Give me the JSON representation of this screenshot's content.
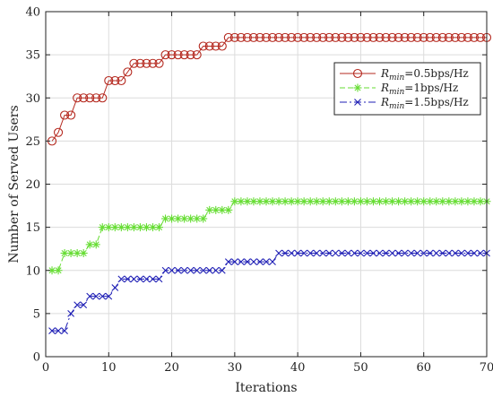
{
  "chart_data": {
    "type": "line",
    "title": "",
    "xlabel": "Iterations",
    "ylabel": "Number of Served Users",
    "xlim": [
      0,
      70
    ],
    "ylim": [
      0,
      40
    ],
    "xticks": [
      0,
      10,
      20,
      30,
      40,
      50,
      60,
      70
    ],
    "yticks": [
      0,
      5,
      10,
      15,
      20,
      25,
      30,
      35,
      40
    ],
    "grid": true,
    "legend_position": "top-right",
    "series": [
      {
        "name": "R_min=0.5bps/Hz",
        "legend_main": "R",
        "legend_sub": "min",
        "legend_rest": "=0.5bps/Hz",
        "color": "#b5291f",
        "marker": "circle",
        "line_style": "solid",
        "x": [
          1,
          2,
          3,
          4,
          5,
          6,
          7,
          8,
          9,
          10,
          11,
          12,
          13,
          14,
          15,
          16,
          17,
          18,
          19,
          20,
          21,
          22,
          23,
          24,
          25,
          26,
          27,
          28,
          29,
          30,
          31,
          32,
          33,
          34,
          35,
          36,
          37,
          38,
          39,
          40,
          41,
          42,
          43,
          44,
          45,
          46,
          47,
          48,
          49,
          50,
          51,
          52,
          53,
          54,
          55,
          56,
          57,
          58,
          59,
          60,
          61,
          62,
          63,
          64,
          65,
          66,
          67,
          68,
          69,
          70
        ],
        "values": [
          25,
          26,
          28,
          28,
          30,
          30,
          30,
          30,
          30,
          32,
          32,
          32,
          33,
          34,
          34,
          34,
          34,
          34,
          35,
          35,
          35,
          35,
          35,
          35,
          36,
          36,
          36,
          36,
          37,
          37,
          37,
          37,
          37,
          37,
          37,
          37,
          37,
          37,
          37,
          37,
          37,
          37,
          37,
          37,
          37,
          37,
          37,
          37,
          37,
          37,
          37,
          37,
          37,
          37,
          37,
          37,
          37,
          37,
          37,
          37,
          37,
          37,
          37,
          37,
          37,
          37,
          37,
          37,
          37,
          37
        ]
      },
      {
        "name": "R_min=1bps/Hz",
        "legend_main": "R",
        "legend_sub": "min",
        "legend_rest": "=1bps/Hz",
        "color": "#66dd33",
        "marker": "asterisk",
        "line_style": "dashed",
        "x": [
          1,
          2,
          3,
          4,
          5,
          6,
          7,
          8,
          9,
          10,
          11,
          12,
          13,
          14,
          15,
          16,
          17,
          18,
          19,
          20,
          21,
          22,
          23,
          24,
          25,
          26,
          27,
          28,
          29,
          30,
          31,
          32,
          33,
          34,
          35,
          36,
          37,
          38,
          39,
          40,
          41,
          42,
          43,
          44,
          45,
          46,
          47,
          48,
          49,
          50,
          51,
          52,
          53,
          54,
          55,
          56,
          57,
          58,
          59,
          60,
          61,
          62,
          63,
          64,
          65,
          66,
          67,
          68,
          69,
          70
        ],
        "values": [
          10,
          10,
          12,
          12,
          12,
          12,
          13,
          13,
          15,
          15,
          15,
          15,
          15,
          15,
          15,
          15,
          15,
          15,
          16,
          16,
          16,
          16,
          16,
          16,
          16,
          17,
          17,
          17,
          17,
          18,
          18,
          18,
          18,
          18,
          18,
          18,
          18,
          18,
          18,
          18,
          18,
          18,
          18,
          18,
          18,
          18,
          18,
          18,
          18,
          18,
          18,
          18,
          18,
          18,
          18,
          18,
          18,
          18,
          18,
          18,
          18,
          18,
          18,
          18,
          18,
          18,
          18,
          18,
          18,
          18
        ]
      },
      {
        "name": "R_min=1.5bps/Hz",
        "legend_main": "R",
        "legend_sub": "min",
        "legend_rest": "=1.5bps/Hz",
        "color": "#1f1fb5",
        "marker": "x",
        "line_style": "dashdot",
        "x": [
          1,
          2,
          3,
          4,
          5,
          6,
          7,
          8,
          9,
          10,
          11,
          12,
          13,
          14,
          15,
          16,
          17,
          18,
          19,
          20,
          21,
          22,
          23,
          24,
          25,
          26,
          27,
          28,
          29,
          30,
          31,
          32,
          33,
          34,
          35,
          36,
          37,
          38,
          39,
          40,
          41,
          42,
          43,
          44,
          45,
          46,
          47,
          48,
          49,
          50,
          51,
          52,
          53,
          54,
          55,
          56,
          57,
          58,
          59,
          60,
          61,
          62,
          63,
          64,
          65,
          66,
          67,
          68,
          69,
          70
        ],
        "values": [
          3,
          3,
          3,
          5,
          6,
          6,
          7,
          7,
          7,
          7,
          8,
          9,
          9,
          9,
          9,
          9,
          9,
          9,
          10,
          10,
          10,
          10,
          10,
          10,
          10,
          10,
          10,
          10,
          11,
          11,
          11,
          11,
          11,
          11,
          11,
          11,
          12,
          12,
          12,
          12,
          12,
          12,
          12,
          12,
          12,
          12,
          12,
          12,
          12,
          12,
          12,
          12,
          12,
          12,
          12,
          12,
          12,
          12,
          12,
          12,
          12,
          12,
          12,
          12,
          12,
          12,
          12,
          12,
          12,
          12
        ]
      }
    ]
  }
}
